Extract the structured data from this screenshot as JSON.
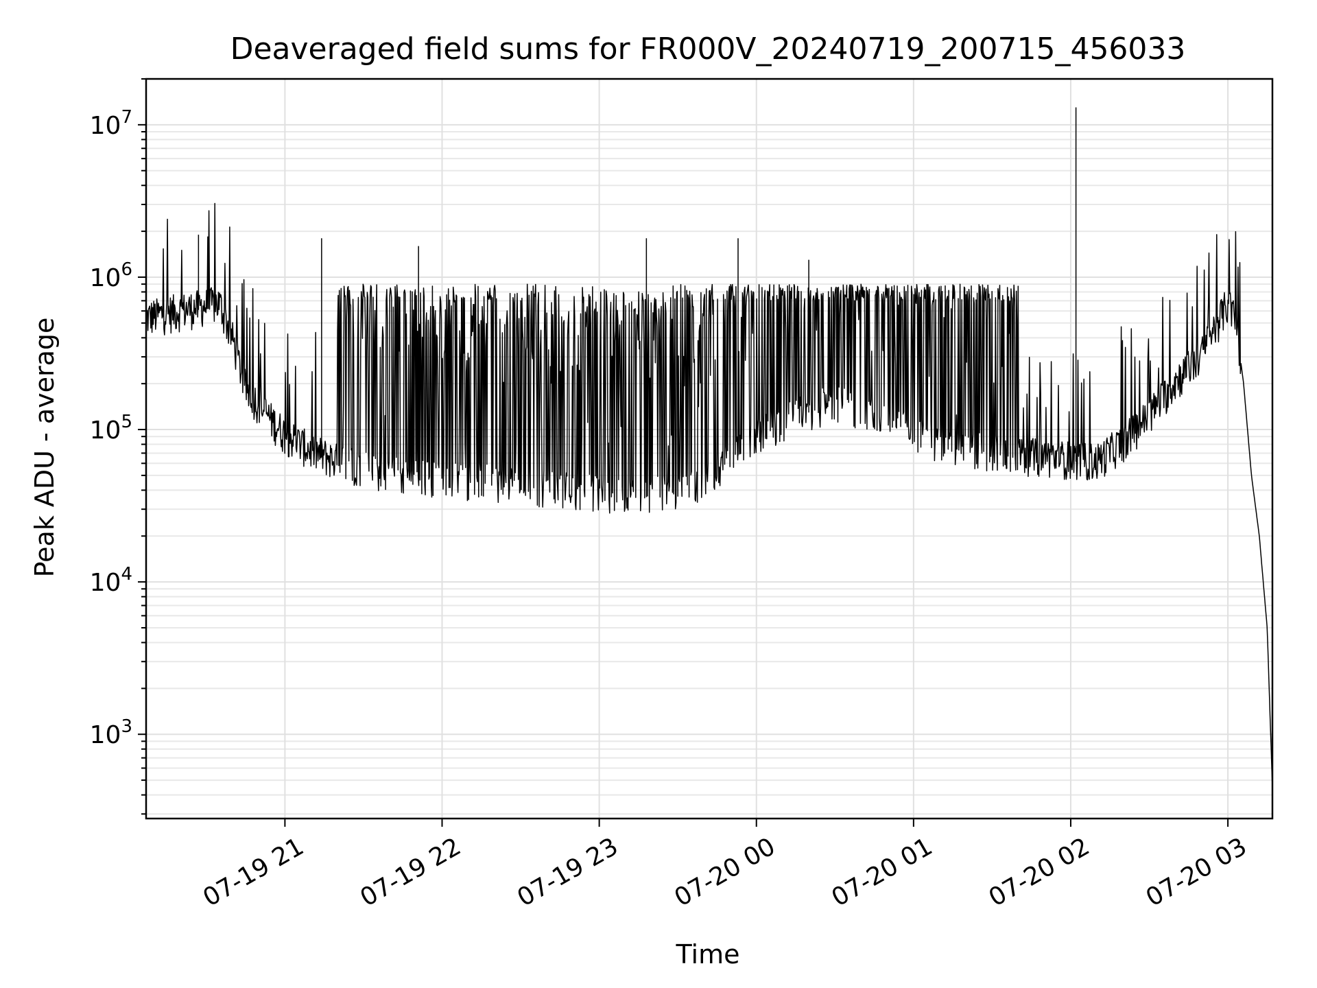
{
  "chart_data": {
    "type": "line",
    "title": "Deaveraged field sums for FR000V_20240719_200715_456033",
    "xlabel": "Time",
    "ylabel": "Peak ADU - average",
    "yscale": "log",
    "grid": true,
    "xlim": [
      "07-19 20:07",
      "07-20 03:17"
    ],
    "ylim": [
      280,
      20000000
    ],
    "x_ticks": [
      "07-19 21",
      "07-19 22",
      "07-19 23",
      "07-20 00",
      "07-20 01",
      "07-20 02",
      "07-20 03"
    ],
    "y_ticks": [
      {
        "base": "10",
        "exp": "3",
        "value": 1000
      },
      {
        "base": "10",
        "exp": "4",
        "value": 10000
      },
      {
        "base": "10",
        "exp": "5",
        "value": 100000
      },
      {
        "base": "10",
        "exp": "6",
        "value": 1000000
      },
      {
        "base": "10",
        "exp": "7",
        "value": 10000000
      }
    ],
    "series": [
      {
        "x": [
          "07-19 20:07",
          "07-19 20:15",
          "07-19 20:25",
          "07-19 20:35",
          "07-19 20:40",
          "07-19 20:45",
          "07-19 20:55",
          "07-19 21:00",
          "07-19 21:10",
          "07-19 21:20",
          "07-19 21:30",
          "07-19 21:40",
          "07-19 21:50",
          "07-19 22:00",
          "07-19 22:15",
          "07-19 22:30",
          "07-19 22:45",
          "07-19 23:00",
          "07-19 23:10",
          "07-19 23:20",
          "07-19 23:30",
          "07-19 23:40",
          "07-19 23:50",
          "07-20 00:00",
          "07-20 00:15",
          "07-20 00:30",
          "07-20 00:45",
          "07-20 01:00",
          "07-20 01:15",
          "07-20 01:30",
          "07-20 01:45",
          "07-20 02:00",
          "07-20 02:10",
          "07-20 02:20",
          "07-20 02:30",
          "07-20 02:40",
          "07-20 02:50",
          "07-20 02:55",
          "07-20 03:00",
          "07-20 03:03",
          "07-20 03:06",
          "07-20 03:09",
          "07-20 03:12",
          "07-20 03:15",
          "07-20 03:17"
        ],
        "y": [
          520000,
          560000,
          600000,
          650000,
          380000,
          180000,
          110000,
          90000,
          70000,
          60000,
          55000,
          50000,
          48000,
          45000,
          45000,
          42000,
          40000,
          38000,
          36000,
          36000,
          38000,
          45000,
          60000,
          90000,
          120000,
          150000,
          120000,
          90000,
          75000,
          70000,
          65000,
          62000,
          60000,
          80000,
          120000,
          200000,
          300000,
          450000,
          650000,
          500000,
          200000,
          50000,
          20000,
          5000,
          450
        ]
      }
    ],
    "spikes": [
      {
        "x": "07-19 20:27",
        "y": 1900000
      },
      {
        "x": "07-19 21:14",
        "y": 1800000
      },
      {
        "x": "07-19 21:51",
        "y": 1600000
      },
      {
        "x": "07-19 23:18",
        "y": 1800000
      },
      {
        "x": "07-19 23:53",
        "y": 1800000
      },
      {
        "x": "07-20 00:20",
        "y": 1300000
      },
      {
        "x": "07-20 02:02",
        "y": 13000000
      }
    ]
  }
}
